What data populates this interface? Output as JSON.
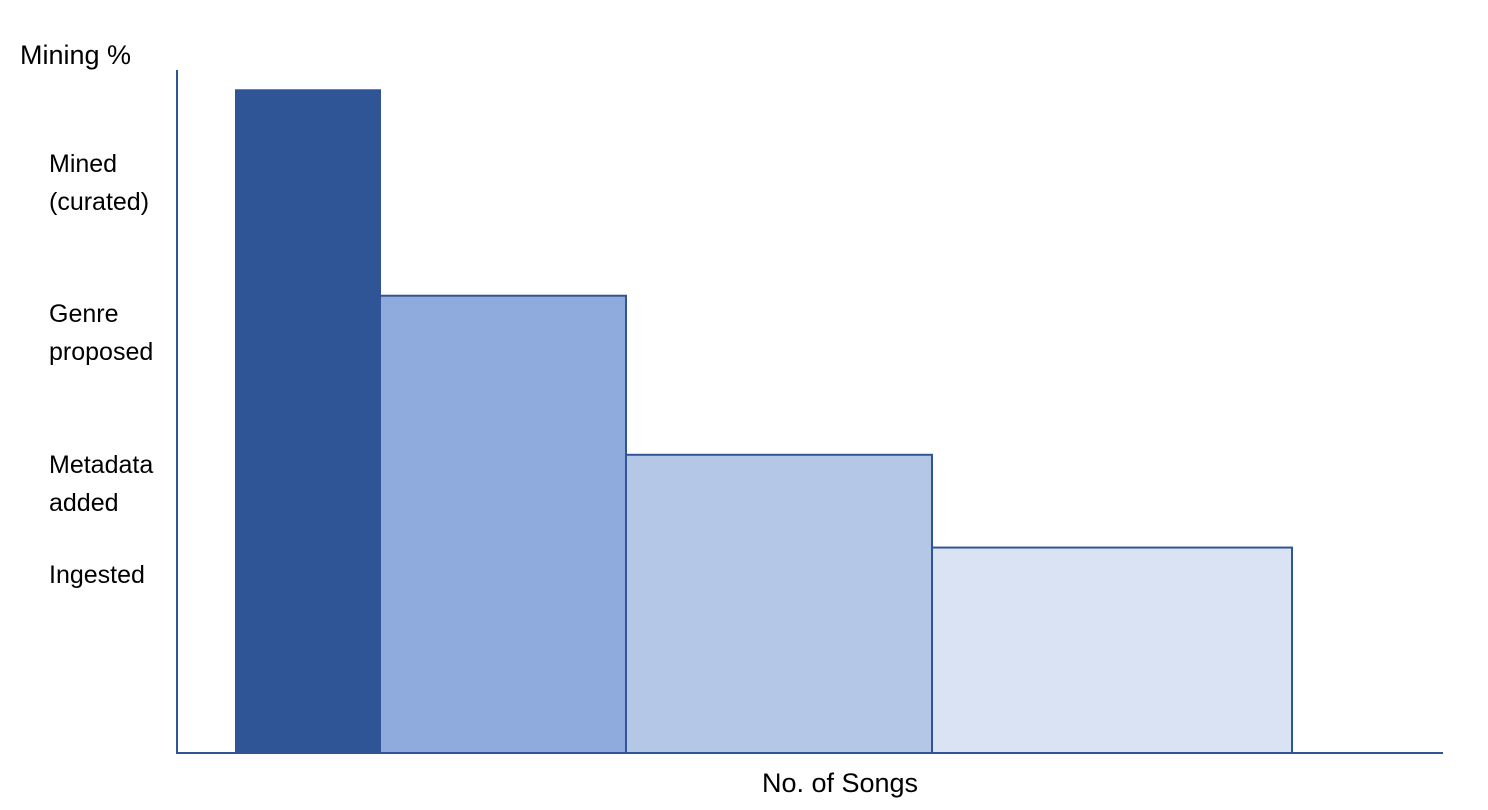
{
  "chart_data": {
    "type": "bar",
    "ylabel": "Mining %",
    "xlabel": "No. of Songs",
    "y_levels": [
      "Mined\n(curated)",
      "Genre\nproposed",
      "Metadata\nadded",
      "Ingested"
    ],
    "categories": [
      "Mined (curated)",
      "Genre proposed",
      "Metadata added",
      "Ingested"
    ],
    "values": [
      100,
      69,
      45,
      31
    ],
    "widths": [
      24,
      41,
      51,
      60
    ],
    "ylim": [
      0,
      110
    ],
    "grid": false,
    "legend": "none",
    "colors": [
      "#2F5597",
      "#8FAADC",
      "#B4C7E7",
      "#DAE3F3"
    ],
    "outline_color": "#2F5597"
  }
}
